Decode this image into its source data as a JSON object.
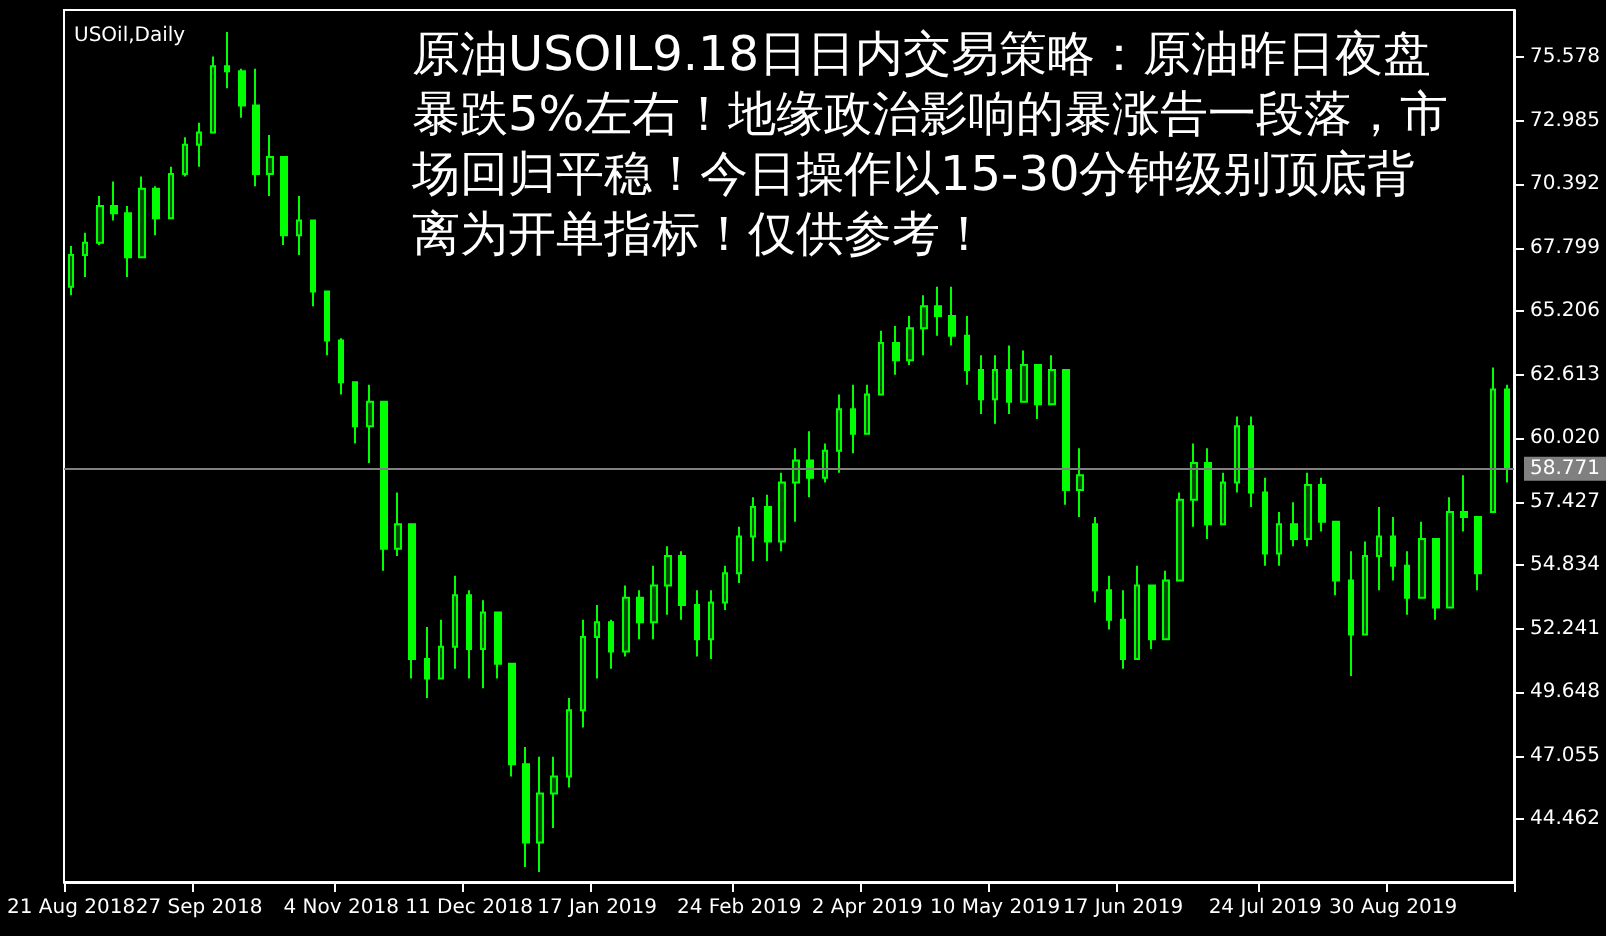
{
  "chart_data": {
    "type": "candlestick",
    "annotations": [
      "USOil,Daily",
      "原油USOIL9.18日日内交易策略：原油昨日夜盘暴跌5%左右！地缘政治影响的暴涨告一段落，市场回归平稳！今日操作以15-30分钟级别顶底背离为开单指标！仅供参考！"
    ],
    "categories": [
      "21 Aug 2018",
      null,
      null,
      null,
      null,
      null,
      null,
      null,
      null,
      "27 Sep 2018",
      null,
      null,
      null,
      null,
      null,
      null,
      null,
      null,
      null,
      "4 Nov 2018",
      null,
      null,
      null,
      null,
      null,
      null,
      null,
      null,
      "11 Dec 2018",
      null,
      null,
      null,
      null,
      null,
      null,
      null,
      null,
      "17 Jan 2019",
      null,
      null,
      null,
      null,
      null,
      null,
      null,
      null,
      null,
      "24 Feb 2019",
      null,
      null,
      null,
      null,
      null,
      null,
      null,
      null,
      "2 Apr 2019",
      null,
      null,
      null,
      null,
      null,
      null,
      null,
      null,
      "10 May 2019",
      null,
      null,
      null,
      null,
      null,
      null,
      null,
      null,
      "17 Jun 2019",
      null,
      null,
      null,
      null,
      null,
      null,
      null,
      null,
      null,
      "24 Jul 2019",
      null,
      null,
      null,
      null,
      null,
      null,
      null,
      null,
      "30 Aug 2019",
      null,
      null,
      null,
      null,
      null,
      null,
      null,
      null
    ],
    "ohlc": [
      [
        66.2,
        67.86,
        65.85,
        67.5
      ],
      [
        67.5,
        68.4,
        66.6,
        68.0
      ],
      [
        68.0,
        69.9,
        67.9,
        69.5
      ],
      [
        69.5,
        70.5,
        68.9,
        69.2
      ],
      [
        69.2,
        69.5,
        66.6,
        67.4
      ],
      [
        67.4,
        70.7,
        67.4,
        70.2
      ],
      [
        70.2,
        70.3,
        68.3,
        69.0
      ],
      [
        69.0,
        71.1,
        69.0,
        70.8
      ],
      [
        70.8,
        72.3,
        70.7,
        72.0
      ],
      [
        72.0,
        72.9,
        71.1,
        72.5
      ],
      [
        72.5,
        75.6,
        72.5,
        75.2
      ],
      [
        75.2,
        76.6,
        74.3,
        75.0
      ],
      [
        75.0,
        75.1,
        73.1,
        73.6
      ],
      [
        73.6,
        75.1,
        70.3,
        70.8
      ],
      [
        70.8,
        72.4,
        69.9,
        71.5
      ],
      [
        71.5,
        71.5,
        67.9,
        68.3
      ],
      [
        68.3,
        69.9,
        67.5,
        68.9
      ],
      [
        68.9,
        68.9,
        65.4,
        66.0
      ],
      [
        66.0,
        66.0,
        63.4,
        64.0
      ],
      [
        64.0,
        64.1,
        61.8,
        62.3
      ],
      [
        62.3,
        62.3,
        59.8,
        60.5
      ],
      [
        60.5,
        62.2,
        59.0,
        61.5
      ],
      [
        61.5,
        61.5,
        54.6,
        55.5
      ],
      [
        55.5,
        57.8,
        55.2,
        56.5
      ],
      [
        56.5,
        56.5,
        50.2,
        51.0
      ],
      [
        51.0,
        52.3,
        49.4,
        50.2
      ],
      [
        50.2,
        52.6,
        50.2,
        51.5
      ],
      [
        51.5,
        54.4,
        50.6,
        53.6
      ],
      [
        53.6,
        53.8,
        50.2,
        51.4
      ],
      [
        51.4,
        53.4,
        49.8,
        52.9
      ],
      [
        52.9,
        52.9,
        50.2,
        50.8
      ],
      [
        50.8,
        50.8,
        46.2,
        46.7
      ],
      [
        46.7,
        47.4,
        42.5,
        43.5
      ],
      [
        43.5,
        47.0,
        42.3,
        45.5
      ],
      [
        45.5,
        47.0,
        44.1,
        46.2
      ],
      [
        46.2,
        49.4,
        45.75,
        48.9
      ],
      [
        48.9,
        52.6,
        48.2,
        51.9
      ],
      [
        51.9,
        53.2,
        50.2,
        52.5
      ],
      [
        52.5,
        52.6,
        50.6,
        51.3
      ],
      [
        51.3,
        54.0,
        51.1,
        53.5
      ],
      [
        53.5,
        53.8,
        51.8,
        52.5
      ],
      [
        52.5,
        54.8,
        51.8,
        54.0
      ],
      [
        54.0,
        55.6,
        52.8,
        55.2
      ],
      [
        55.2,
        55.4,
        52.6,
        53.2
      ],
      [
        53.2,
        53.8,
        51.1,
        51.8
      ],
      [
        51.8,
        53.8,
        51.0,
        53.3
      ],
      [
        53.3,
        54.8,
        53.0,
        54.5
      ],
      [
        54.5,
        56.4,
        54.1,
        56.0
      ],
      [
        56.0,
        57.6,
        55.0,
        57.2
      ],
      [
        57.2,
        57.7,
        55.0,
        55.8
      ],
      [
        55.8,
        58.6,
        55.4,
        58.2
      ],
      [
        58.2,
        59.6,
        56.6,
        59.1
      ],
      [
        59.1,
        60.3,
        57.6,
        58.4
      ],
      [
        58.4,
        59.8,
        58.2,
        59.5
      ],
      [
        59.5,
        61.8,
        58.6,
        61.2
      ],
      [
        61.2,
        62.2,
        59.4,
        60.2
      ],
      [
        60.2,
        62.2,
        60.2,
        61.8
      ],
      [
        61.8,
        64.4,
        61.8,
        63.9
      ],
      [
        63.9,
        64.6,
        62.6,
        63.2
      ],
      [
        63.2,
        65.0,
        63.0,
        64.5
      ],
      [
        64.5,
        65.85,
        63.4,
        65.4
      ],
      [
        65.4,
        66.2,
        64.2,
        65.0
      ],
      [
        65.0,
        66.2,
        63.8,
        64.2
      ],
      [
        64.2,
        65.0,
        62.2,
        62.8
      ],
      [
        62.8,
        63.4,
        61.0,
        61.6
      ],
      [
        61.6,
        63.4,
        60.6,
        62.8
      ],
      [
        62.8,
        63.8,
        61.0,
        61.5
      ],
      [
        61.5,
        63.6,
        61.5,
        63.0
      ],
      [
        63.0,
        63.0,
        60.8,
        61.4
      ],
      [
        61.4,
        63.4,
        61.4,
        62.8
      ],
      [
        62.8,
        62.8,
        57.3,
        57.9
      ],
      [
        57.9,
        59.6,
        56.8,
        58.5
      ],
      [
        56.5,
        56.8,
        53.3,
        53.8
      ],
      [
        53.8,
        54.4,
        52.2,
        52.6
      ],
      [
        52.6,
        53.8,
        50.6,
        51.0
      ],
      [
        51.0,
        54.8,
        51.0,
        54.0
      ],
      [
        54.0,
        54.0,
        51.4,
        51.8
      ],
      [
        51.8,
        54.6,
        51.8,
        54.2
      ],
      [
        54.2,
        57.8,
        54.2,
        57.5
      ],
      [
        57.5,
        59.8,
        56.4,
        59.0
      ],
      [
        59.0,
        59.6,
        55.9,
        56.5
      ],
      [
        56.5,
        58.6,
        56.5,
        58.2
      ],
      [
        58.2,
        60.9,
        57.8,
        60.5
      ],
      [
        60.5,
        60.9,
        57.2,
        57.8
      ],
      [
        57.8,
        58.4,
        54.8,
        55.3
      ],
      [
        55.3,
        57.0,
        54.8,
        56.5
      ],
      [
        56.5,
        57.4,
        55.6,
        55.9
      ],
      [
        55.9,
        58.6,
        55.6,
        58.1
      ],
      [
        58.1,
        58.4,
        56.2,
        56.6
      ],
      [
        56.6,
        56.6,
        53.6,
        54.2
      ],
      [
        54.2,
        55.4,
        50.3,
        52.0
      ],
      [
        52.0,
        55.8,
        52.0,
        55.2
      ],
      [
        55.2,
        57.2,
        53.8,
        56.0
      ],
      [
        56.0,
        56.8,
        54.2,
        54.8
      ],
      [
        54.8,
        55.4,
        52.8,
        53.5
      ],
      [
        53.5,
        56.6,
        53.5,
        55.9
      ],
      [
        55.9,
        55.9,
        52.6,
        53.1
      ],
      [
        53.1,
        57.6,
        53.1,
        57.0
      ],
      [
        57.0,
        58.5,
        56.2,
        56.8
      ],
      [
        56.8,
        56.8,
        53.8,
        54.5
      ],
      [
        57.0,
        62.9,
        57.0,
        62.0
      ],
      [
        62.0,
        62.2,
        58.2,
        58.77
      ]
    ],
    "color": "#00ff00",
    "ylim": [
      41.89,
      77.5
    ],
    "yticks": [
      {
        "value": 44.462,
        "label": "44.462"
      },
      {
        "value": 47.055,
        "label": "47.055"
      },
      {
        "value": 49.648,
        "label": "49.648"
      },
      {
        "value": 52.241,
        "label": "52.241"
      },
      {
        "value": 54.834,
        "label": "54.834"
      },
      {
        "value": 57.427,
        "label": "57.427"
      },
      {
        "value": 60.02,
        "label": "60.020"
      },
      {
        "value": 62.613,
        "label": "62.613"
      },
      {
        "value": 65.206,
        "label": "65.206"
      },
      {
        "value": 67.799,
        "label": "67.799"
      },
      {
        "value": 70.392,
        "label": "70.392"
      },
      {
        "value": 72.985,
        "label": "72.985"
      },
      {
        "value": 75.578,
        "label": "75.578"
      }
    ],
    "ref_lines": [
      {
        "axis": "y",
        "value": 58.771,
        "label": "58.771",
        "color": "#808080"
      }
    ],
    "grid": false
  }
}
